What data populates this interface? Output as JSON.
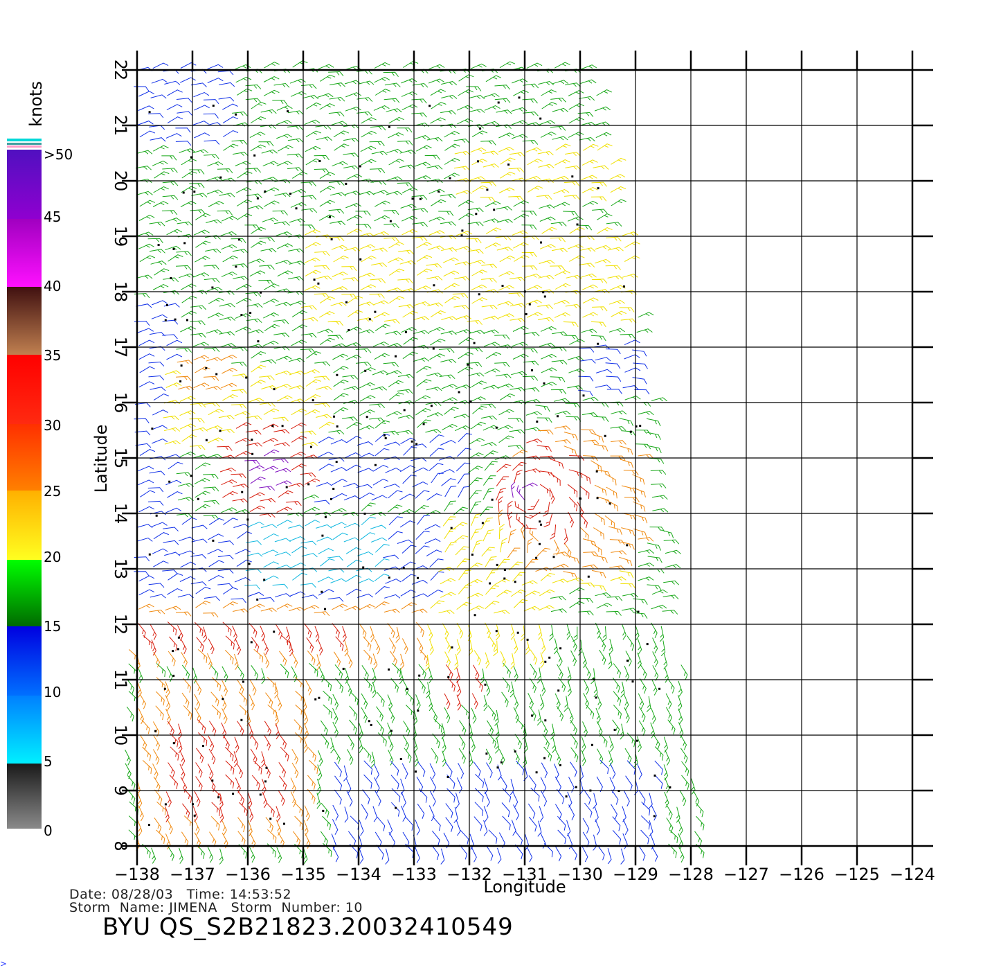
{
  "map": {
    "x_axis_title": "Longitude",
    "y_axis_title": "Latitude",
    "longitude_ticks": [
      "−138",
      "−137",
      "−136",
      "−135",
      "−134",
      "−133",
      "−132",
      "−131",
      "−130",
      "−129",
      "−128",
      "−127",
      "−126",
      "−125",
      "−124"
    ],
    "latitude_ticks": [
      "8",
      "9",
      "10",
      "11",
      "12",
      "13",
      "14",
      "15",
      "16",
      "17",
      "18",
      "19",
      "20",
      "21",
      "22"
    ],
    "longitude_range": [
      -138,
      -124
    ],
    "latitude_range": [
      8,
      22
    ],
    "grid": true
  },
  "legend": {
    "unit": "knots",
    "labels": [
      "0",
      "5",
      "10",
      "15",
      "20",
      "25",
      "30",
      "35",
      "40",
      "45",
      ">50"
    ],
    "colors": [
      "#7a7a7a",
      "#00e8ff",
      "#0000ff",
      "#00ff00",
      "#ffff00",
      "#ff6a00",
      "#ff1000",
      "#7a3a20",
      "#ff00ff",
      "#6a00d0"
    ]
  },
  "info": {
    "date_line": "Date: 08/28/03   Time: 14:53:52",
    "storm_line": "Storm  Name: JIMENA   Storm  Number: 10",
    "file_name": "BYU  QS_S2B21823.20032410549"
  },
  "corner_glyph": ">"
}
